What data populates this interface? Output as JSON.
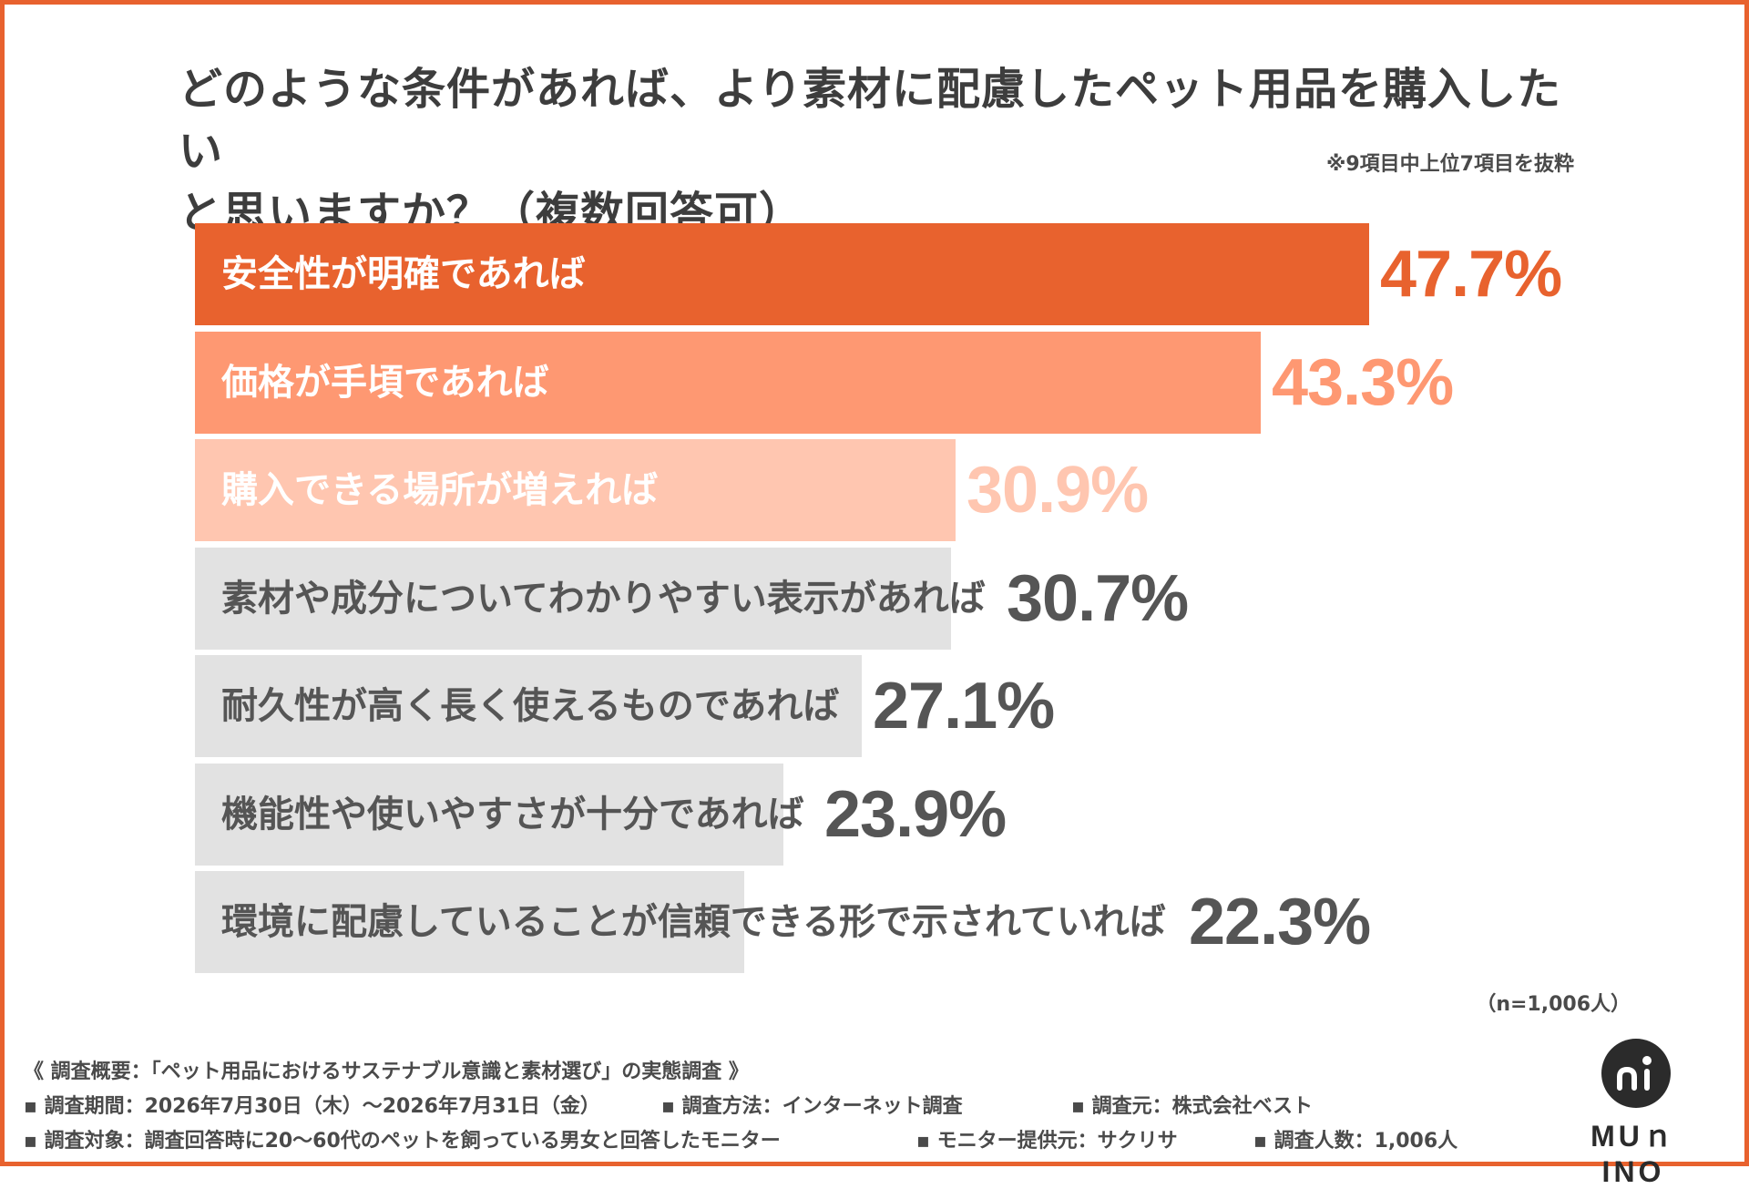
{
  "title_line1": "どのような条件があれば、より素材に配慮したペット用品を購入したい",
  "title_line2": "と思いますか？（複数回答可）",
  "excerpt_note": "※9項目中上位7項目を抜粋",
  "n_note": "（n=1,006人）",
  "colors": {
    "frame": "#e8622e",
    "bar1": "#e8622e",
    "bar2": "#fe9872",
    "bar3": "#ffc6b0",
    "bar_gray": "#e2e2e2",
    "text_gray": "#555555"
  },
  "chart_data": {
    "type": "bar",
    "orientation": "horizontal",
    "categories": [
      "安全性が明確であれば",
      "価格が手頃であれば",
      "購入できる場所が増えれば",
      "素材や成分についてわかりやすい表示があれば",
      "耐久性が高く長く使えるものであれば",
      "機能性や使いやすさが十分であれば",
      "環境に配慮していることが信頼できる形で示されていれば"
    ],
    "values": [
      47.7,
      43.3,
      30.9,
      30.7,
      27.1,
      23.9,
      22.3
    ],
    "value_labels": [
      "47.7%",
      "43.3%",
      "30.9%",
      "30.7%",
      "27.1%",
      "23.9%",
      "22.3%"
    ],
    "unit": "%",
    "grid": false
  },
  "footer": {
    "overview": "《 調査概要：「ペット用品におけるサステナブル意識と素材選び」の実態調査 》",
    "period": "▪ 調査期間：2026年7月30日（木）～2026年7月31日（金）",
    "method": "▪ 調査方法：インターネット調査",
    "source": "▪ 調査元：株式会社ベスト",
    "target": "▪ 調査対象：調査回答時に20～60代のペットを飼っている男女と回答したモニター",
    "provider": "▪ モニター提供元：サクリサ",
    "count": "▪ 調査人数：1,006人"
  },
  "logo": {
    "text": "MUｎINO",
    "icon": "mufino-logo-icon"
  }
}
